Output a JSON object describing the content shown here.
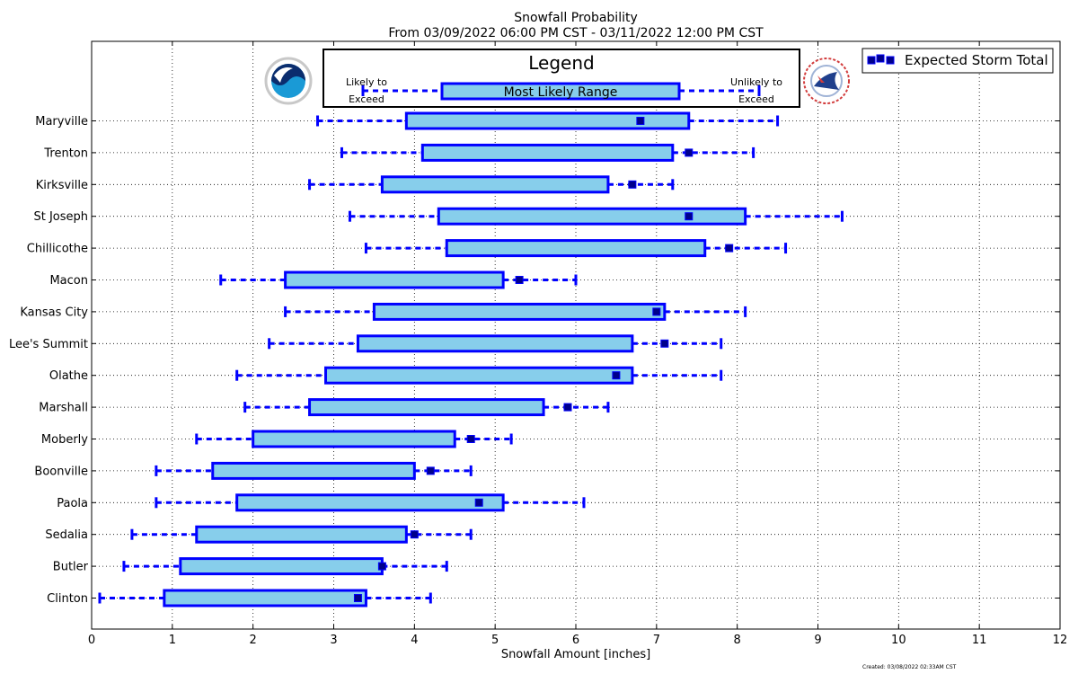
{
  "chart_data": {
    "type": "boxplot",
    "title": "Snowfall Probability",
    "subtitle": "From 03/09/2022 06:00 PM CST - 03/11/2022 12:00 PM CST",
    "xlabel": "Snowfall Amount [inches]",
    "ylabel": "",
    "xlim": [
      0,
      12
    ],
    "xticks": [
      "0",
      "1",
      "2",
      "3",
      "4",
      "5",
      "6",
      "7",
      "8",
      "9",
      "10",
      "11",
      "12"
    ],
    "grid": true,
    "legend": {
      "title": "Legend",
      "range_label": "Most Likely Range",
      "low_label_line1": "Likely to",
      "low_label_line2": "Exceed",
      "high_label_line1": "Unlikely to",
      "high_label_line2": "Exceed",
      "marker_label": "Expected Storm Total",
      "marker_legend_placement": "top-right"
    },
    "footer": "Created: 03/08/2022 02:33AM CST",
    "colors": {
      "box_fill": "#87ceeb",
      "box_edge": "#0000ff",
      "marker": "#00008b"
    },
    "categories": [
      "Maryville",
      "Trenton",
      "Kirksville",
      "St Joseph",
      "Chillicothe",
      "Macon",
      "Kansas City",
      "Lee's Summit",
      "Olathe",
      "Marshall",
      "Moberly",
      "Boonville",
      "Paola",
      "Sedalia",
      "Butler",
      "Clinton"
    ],
    "series": [
      {
        "low": 2.8,
        "q1": 3.9,
        "q3": 7.4,
        "high": 8.5,
        "expected": 6.8
      },
      {
        "low": 3.1,
        "q1": 4.1,
        "q3": 7.2,
        "high": 8.2,
        "expected": 7.4
      },
      {
        "low": 2.7,
        "q1": 3.6,
        "q3": 6.4,
        "high": 7.2,
        "expected": 6.7
      },
      {
        "low": 3.2,
        "q1": 4.3,
        "q3": 8.1,
        "high": 9.3,
        "expected": 7.4
      },
      {
        "low": 3.4,
        "q1": 4.4,
        "q3": 7.6,
        "high": 8.6,
        "expected": 7.9
      },
      {
        "low": 1.6,
        "q1": 2.4,
        "q3": 5.1,
        "high": 6.0,
        "expected": 5.3
      },
      {
        "low": 2.4,
        "q1": 3.5,
        "q3": 7.1,
        "high": 8.1,
        "expected": 7.0
      },
      {
        "low": 2.2,
        "q1": 3.3,
        "q3": 6.7,
        "high": 7.8,
        "expected": 7.1
      },
      {
        "low": 1.8,
        "q1": 2.9,
        "q3": 6.7,
        "high": 7.8,
        "expected": 6.5
      },
      {
        "low": 1.9,
        "q1": 2.7,
        "q3": 5.6,
        "high": 6.4,
        "expected": 5.9
      },
      {
        "low": 1.3,
        "q1": 2.0,
        "q3": 4.5,
        "high": 5.2,
        "expected": 4.7
      },
      {
        "low": 0.8,
        "q1": 1.5,
        "q3": 4.0,
        "high": 4.7,
        "expected": 4.2
      },
      {
        "low": 0.8,
        "q1": 1.8,
        "q3": 5.1,
        "high": 6.1,
        "expected": 4.8
      },
      {
        "low": 0.5,
        "q1": 1.3,
        "q3": 3.9,
        "high": 4.7,
        "expected": 4.0
      },
      {
        "low": 0.4,
        "q1": 1.1,
        "q3": 3.6,
        "high": 4.4,
        "expected": 3.6
      },
      {
        "low": 0.1,
        "q1": 0.9,
        "q3": 3.4,
        "high": 4.2,
        "expected": 3.3
      }
    ]
  }
}
